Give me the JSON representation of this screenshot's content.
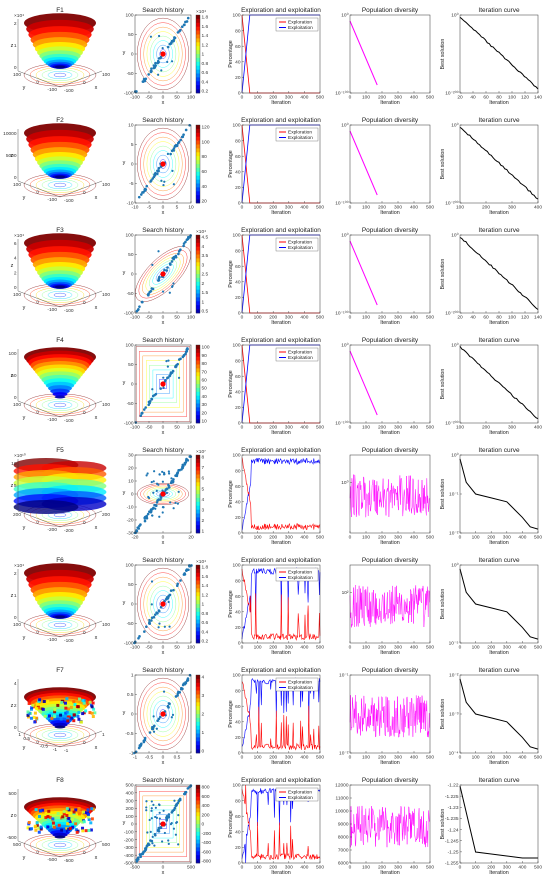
{
  "axis_text": {
    "x": "x",
    "y": "y",
    "z": "z",
    "iteration": "Iteration",
    "percentage": "Percentage",
    "best_solution": "Best solution"
  },
  "rows": [
    {
      "surface": {
        "title": "F1",
        "z_exp": "×10⁴",
        "z_ticks": [
          "0",
          "1",
          "2"
        ],
        "x_ticks": [
          "-100",
          "0",
          "100"
        ],
        "y_ticks": [
          "100",
          "0",
          "-100"
        ]
      },
      "history": {
        "title": "Search history",
        "x_ticks": [
          "-100",
          "-50",
          "0",
          "50",
          "100"
        ],
        "y_ticks": [
          "100",
          "50",
          "0",
          "-50",
          "-100"
        ],
        "cb_exp": "×10⁴",
        "cb_ticks": [
          "1.8",
          "1.6",
          "1.4",
          "1.2",
          "1",
          "0.8",
          "0.6",
          "0.4",
          "0.2"
        ]
      },
      "expl": {
        "title": "Exploration and exploitation",
        "legend": [
          "Exploration",
          "Exploitation"
        ],
        "x_ticks": [
          "0",
          "100",
          "200",
          "300",
          "400",
          "500"
        ],
        "y_ticks": [
          "100",
          "80",
          "60",
          "40",
          "20",
          "0"
        ]
      },
      "diversity": {
        "title": "Population diversity",
        "x_ticks": [
          "0",
          "100",
          "200",
          "300",
          "400",
          "500"
        ],
        "y_ticks": [
          "10⁰",
          "10⁻¹⁰⁰"
        ]
      },
      "curve": {
        "title": "Iteration curve",
        "x_ticks": [
          "20",
          "40",
          "60",
          "80",
          "100",
          "120",
          "140"
        ],
        "y_ticks": [
          "10⁰",
          "10⁻²⁰⁰"
        ]
      }
    },
    {
      "surface": {
        "title": "F2",
        "z_exp": "",
        "z_ticks": [
          "0",
          "5000",
          "10000"
        ],
        "x_ticks": [
          "-100",
          "0",
          "100"
        ],
        "y_ticks": [
          "100",
          "0",
          "-100"
        ]
      },
      "history": {
        "title": "Search history",
        "x_ticks": [
          "-10",
          "-5",
          "0",
          "5",
          "10"
        ],
        "y_ticks": [
          "10",
          "5",
          "0",
          "-5",
          "-10"
        ],
        "cb_exp": "",
        "cb_ticks": [
          "120",
          "100",
          "80",
          "60",
          "40",
          "20"
        ]
      },
      "expl": {
        "title": "Exploration and exploitation",
        "legend": [
          "Exploration",
          "Exploitation"
        ],
        "x_ticks": [
          "0",
          "100",
          "200",
          "300",
          "400",
          "500"
        ],
        "y_ticks": [
          "100",
          "80",
          "60",
          "40",
          "20",
          "0"
        ]
      },
      "diversity": {
        "title": "Population diversity",
        "x_ticks": [
          "0",
          "100",
          "200",
          "300",
          "400",
          "500"
        ],
        "y_ticks": [
          "10⁰",
          "10⁻¹⁰⁰"
        ]
      },
      "curve": {
        "title": "Iteration curve",
        "x_ticks": [
          "100",
          "200",
          "300",
          "400"
        ],
        "y_ticks": [
          "10⁰",
          "10⁻²⁰⁰"
        ]
      }
    },
    {
      "surface": {
        "title": "F3",
        "z_exp": "×10⁴",
        "z_ticks": [
          "0",
          "2",
          "4",
          "6"
        ],
        "x_ticks": [
          "-100",
          "0",
          "100"
        ],
        "y_ticks": [
          "100",
          "0",
          "-100"
        ]
      },
      "history": {
        "title": "Search history",
        "x_ticks": [
          "-100",
          "-50",
          "0",
          "50",
          "100"
        ],
        "y_ticks": [
          "100",
          "50",
          "0",
          "-50",
          "-100"
        ],
        "cb_exp": "×10⁴",
        "cb_ticks": [
          "4.5",
          "4",
          "3.5",
          "3",
          "2.5",
          "2",
          "1.5",
          "1",
          "0.5"
        ]
      },
      "expl": {
        "title": "Exploration and exploitation",
        "legend": [
          "Exploration",
          "Exploitation"
        ],
        "x_ticks": [
          "0",
          "100",
          "200",
          "300",
          "400",
          "500"
        ],
        "y_ticks": [
          "100",
          "80",
          "60",
          "40",
          "20",
          "0"
        ]
      },
      "diversity": {
        "title": "Population diversity",
        "x_ticks": [
          "0",
          "100",
          "200",
          "300",
          "400",
          "500"
        ],
        "y_ticks": [
          "10⁰",
          "10⁻¹⁰⁰"
        ]
      },
      "curve": {
        "title": "Iteration curve",
        "x_ticks": [
          "20",
          "40",
          "60",
          "80",
          "100",
          "120",
          "140"
        ],
        "y_ticks": [
          "10⁰",
          "10⁻²⁰⁰"
        ]
      }
    },
    {
      "surface": {
        "title": "F4",
        "z_exp": "",
        "z_ticks": [
          "0",
          "50",
          "100"
        ],
        "x_ticks": [
          "-100",
          "0",
          "100"
        ],
        "y_ticks": [
          "100",
          "0",
          "-100"
        ]
      },
      "history": {
        "title": "Search history",
        "x_ticks": [
          "-100",
          "-50",
          "0",
          "50",
          "100"
        ],
        "y_ticks": [
          "100",
          "50",
          "0",
          "-50",
          "-100"
        ],
        "cb_exp": "",
        "cb_ticks": [
          "100",
          "90",
          "80",
          "70",
          "60",
          "50",
          "40",
          "30",
          "20",
          "10"
        ]
      },
      "expl": {
        "title": "Exploration and exploitation",
        "legend": [
          "Exploration",
          "Exploitation"
        ],
        "x_ticks": [
          "0",
          "100",
          "200",
          "300",
          "400",
          "500"
        ],
        "y_ticks": [
          "100",
          "80",
          "60",
          "40",
          "20",
          "0"
        ]
      },
      "diversity": {
        "title": "Population diversity",
        "x_ticks": [
          "0",
          "100",
          "200",
          "300",
          "400",
          "500"
        ],
        "y_ticks": [
          "10⁰",
          "10⁻¹⁰⁰"
        ]
      },
      "curve": {
        "title": "Iteration curve",
        "x_ticks": [
          "100",
          "200",
          "300",
          "400"
        ],
        "y_ticks": [
          "10⁰",
          "10⁻²⁰⁰"
        ]
      }
    },
    {
      "surface": {
        "title": "F5",
        "z_exp": "×10¹⁰",
        "z_ticks": [
          "0",
          "5",
          "10"
        ],
        "x_ticks": [
          "-200",
          "0",
          "200"
        ],
        "y_ticks": [
          "200",
          "0",
          "-200"
        ]
      },
      "history": {
        "title": "Search history",
        "x_ticks": [
          "-20",
          "0",
          "20"
        ],
        "y_ticks": [
          "30",
          "20",
          "10",
          "0",
          "-10",
          "-20",
          "-30"
        ],
        "cb_exp": "×10⁷",
        "cb_ticks": [
          "8",
          "7",
          "6",
          "5",
          "4",
          "3",
          "2",
          "1"
        ]
      },
      "expl": {
        "title": "Exploration and exploitation",
        "legend": [],
        "x_ticks": [
          "0",
          "100",
          "200",
          "300",
          "400",
          "500"
        ],
        "y_ticks": [
          "100",
          "80",
          "60",
          "40",
          "20",
          "0"
        ]
      },
      "diversity": {
        "title": "Population diversity",
        "x_ticks": [
          "0",
          "100",
          "200",
          "300",
          "400",
          "500"
        ],
        "y_ticks": [
          "10⁰"
        ]
      },
      "curve": {
        "title": "Iteration curve",
        "x_ticks": [
          "0",
          "100",
          "200",
          "300",
          "400",
          "500"
        ],
        "y_ticks": [
          "10⁰",
          "10⁻¹",
          "10⁻²"
        ]
      }
    },
    {
      "surface": {
        "title": "F6",
        "z_exp": "×10⁴",
        "z_ticks": [
          "0",
          "1",
          "2"
        ],
        "x_ticks": [
          "-100",
          "0",
          "100"
        ],
        "y_ticks": [
          "100",
          "0",
          "-100"
        ]
      },
      "history": {
        "title": "Search history",
        "x_ticks": [
          "-100",
          "-50",
          "0",
          "50",
          "100"
        ],
        "y_ticks": [
          "100",
          "50",
          "0",
          "-50",
          "-100"
        ],
        "cb_exp": "×10⁴",
        "cb_ticks": [
          "1.8",
          "1.6",
          "1.4",
          "1.2",
          "1",
          "0.8",
          "0.6",
          "0.4",
          "0.2"
        ]
      },
      "expl": {
        "title": "Exploration and exploitation",
        "legend": [
          "Exploration",
          "Exploitation"
        ],
        "x_ticks": [
          "0",
          "100",
          "200",
          "300",
          "400",
          "500"
        ],
        "y_ticks": [
          "100",
          "80",
          "60",
          "40",
          "20",
          "0"
        ]
      },
      "diversity": {
        "title": "Population diversity",
        "x_ticks": [
          "0",
          "100",
          "200",
          "300",
          "400",
          "500"
        ],
        "y_ticks": [
          "10²"
        ]
      },
      "curve": {
        "title": "Iteration curve",
        "x_ticks": [
          "0",
          "100",
          "200",
          "300",
          "400",
          "500"
        ],
        "y_ticks": [
          "10⁰",
          "10⁻⁵"
        ]
      }
    },
    {
      "surface": {
        "title": "F7",
        "z_exp": "",
        "z_ticks": [
          "0",
          "2",
          "4"
        ],
        "x_ticks": [
          "-1",
          "0",
          "1"
        ],
        "y_ticks": [
          "1",
          "0.5",
          "0",
          "-0.5",
          "-1"
        ]
      },
      "history": {
        "title": "Search history",
        "x_ticks": [
          "-1",
          "-0.5",
          "0",
          "0.5",
          "1"
        ],
        "y_ticks": [
          "1",
          "0.5",
          "0",
          "-0.5",
          "-1"
        ],
        "cb_exp": "",
        "cb_ticks": [
          "4",
          "3",
          "2",
          "1",
          "0"
        ]
      },
      "expl": {
        "title": "Exploration and exploitation",
        "legend": [
          "Exploration",
          "Exploitation"
        ],
        "x_ticks": [
          "0",
          "100",
          "200",
          "300",
          "400",
          "500"
        ],
        "y_ticks": [
          "100",
          "80",
          "60",
          "40",
          "20",
          "0"
        ]
      },
      "diversity": {
        "title": "Population diversity",
        "x_ticks": [
          "0",
          "100",
          "200",
          "300",
          "400",
          "500"
        ],
        "y_ticks": [
          "10⁻¹",
          "10⁻²"
        ]
      },
      "curve": {
        "title": "Iteration curve",
        "x_ticks": [
          "0",
          "100",
          "200",
          "300",
          "400",
          "500"
        ],
        "y_ticks": [
          "10⁻²",
          "10⁻³",
          "10⁻⁴"
        ]
      }
    },
    {
      "surface": {
        "title": "F8",
        "z_exp": "",
        "z_ticks": [
          "-500",
          "0",
          "500"
        ],
        "x_ticks": [
          "-500",
          "0",
          "500"
        ],
        "y_ticks": [
          "500",
          "0",
          "-500"
        ]
      },
      "history": {
        "title": "Search history",
        "x_ticks": [
          "-500",
          "0",
          "500"
        ],
        "y_ticks": [
          "500",
          "400",
          "300",
          "200",
          "100",
          "0",
          "-100",
          "-200",
          "-300",
          "-400",
          "-500"
        ],
        "cb_exp": "",
        "cb_ticks": [
          "800",
          "600",
          "400",
          "200",
          "0",
          "-200",
          "-400",
          "-600",
          "-800"
        ]
      },
      "expl": {
        "title": "Exploration and exploitation",
        "legend": [
          "Exploration",
          "Exploitation"
        ],
        "x_ticks": [
          "0",
          "100",
          "200",
          "300",
          "400",
          "500"
        ],
        "y_ticks": [
          "100",
          "80",
          "60",
          "40",
          "20",
          "0"
        ]
      },
      "diversity": {
        "title": "Population diversity",
        "x_ticks": [
          "0",
          "100",
          "200",
          "300",
          "400",
          "500"
        ],
        "y_ticks": [
          "12000",
          "11000",
          "10000",
          "9000",
          "8000",
          "7000",
          "6000"
        ]
      },
      "curve": {
        "title": "Iteration curve",
        "x_ticks": [
          "0",
          "100",
          "200",
          "300",
          "400",
          "500"
        ],
        "y_ticks": [
          "-1.22",
          "-1.225",
          "-1.23",
          "-1.235",
          "-1.24",
          "-1.245",
          "-1.25",
          "-1.255"
        ]
      }
    }
  ],
  "chart_data": [
    {
      "type": "line",
      "title": "Exploration and exploitation",
      "xlabel": "Iteration",
      "ylabel": "Percentage",
      "x": [
        0,
        50,
        100,
        150,
        200,
        250,
        300,
        350,
        400,
        450,
        500
      ],
      "xlim": [
        0,
        500
      ],
      "ylim": [
        0,
        100
      ],
      "series": [
        {
          "name": "Exploration",
          "values": [
            100,
            0,
            0,
            0,
            0,
            0,
            0,
            0,
            0,
            0,
            0
          ]
        },
        {
          "name": "Exploitation",
          "values": [
            0,
            100,
            100,
            100,
            100,
            100,
            100,
            100,
            100,
            100,
            100
          ]
        }
      ]
    },
    {
      "type": "line",
      "title": "Exploration and exploitation",
      "xlabel": "Iteration",
      "ylabel": "Percentage",
      "x": [
        0,
        10,
        20,
        30,
        40,
        50,
        60,
        70,
        80,
        100,
        150,
        200,
        250,
        300,
        350,
        400,
        450,
        500
      ],
      "xlim": [
        0,
        500
      ],
      "ylim": [
        0,
        100
      ],
      "series": [
        {
          "name": "Exploration",
          "values": [
            95,
            85,
            60,
            15,
            40,
            60,
            10,
            15,
            5,
            5,
            5,
            4,
            6,
            4,
            5,
            4,
            5,
            4
          ]
        },
        {
          "name": "Exploitation",
          "values": [
            5,
            15,
            40,
            85,
            60,
            40,
            90,
            85,
            95,
            95,
            95,
            96,
            94,
            96,
            95,
            96,
            95,
            96
          ]
        }
      ]
    },
    {
      "type": "line",
      "title": "Population diversity",
      "xlabel": "Iteration",
      "x": [
        0,
        50,
        100,
        150,
        170,
        200,
        250,
        300,
        350,
        400,
        450,
        500
      ],
      "xlim": [
        0,
        500
      ],
      "yscale": "log",
      "series": [
        {
          "values": [
            1,
            1e-30,
            1e-60,
            1e-95,
            1e-110,
            1e-110,
            1e-110,
            1e-110,
            1e-110,
            1e-110,
            1e-110,
            1e-110
          ]
        }
      ]
    },
    {
      "type": "line",
      "title": "Iteration curve",
      "xlabel": "Iteration",
      "ylabel": "Best solution",
      "x": [
        0,
        20,
        40,
        60,
        80,
        100,
        120,
        140
      ],
      "xlim": [
        0,
        145
      ],
      "yscale": "log",
      "series": [
        {
          "values": [
            1,
            1e-40,
            1e-80,
            1e-120,
            1e-160,
            1e-200,
            1e-240,
            1e-280
          ]
        }
      ]
    },
    {
      "type": "line",
      "title": "Iteration curve",
      "xlabel": "Iteration",
      "ylabel": "Best solution",
      "x": [
        0,
        50,
        100,
        200,
        300,
        350,
        400,
        450,
        500
      ],
      "xlim": [
        0,
        500
      ],
      "yscale": "log",
      "series": [
        {
          "values": [
            3,
            0.1,
            0.08,
            0.06,
            0.05,
            0.04,
            0.02,
            0.004,
            0.002
          ]
        }
      ]
    },
    {
      "type": "line",
      "title": "Iteration curve",
      "xlabel": "Iteration",
      "ylabel": "Best solution",
      "x": [
        0,
        100,
        200,
        300,
        350,
        400,
        500
      ],
      "xlim": [
        0,
        500
      ],
      "ylim": [
        -1.2585,
        -1.2195
      ],
      "series": [
        {
          "values": [
            -1.22,
            -1.253,
            -1.254,
            -1.255,
            -1.2555,
            -1.256,
            -1.256
          ]
        }
      ]
    }
  ],
  "colors": {
    "exploration": "#ff0000",
    "exploitation": "#0000ff",
    "diversity": "#ff00ff",
    "curve": "#000000",
    "history_point": "#1f77b4",
    "best_point": "#ff0000"
  }
}
